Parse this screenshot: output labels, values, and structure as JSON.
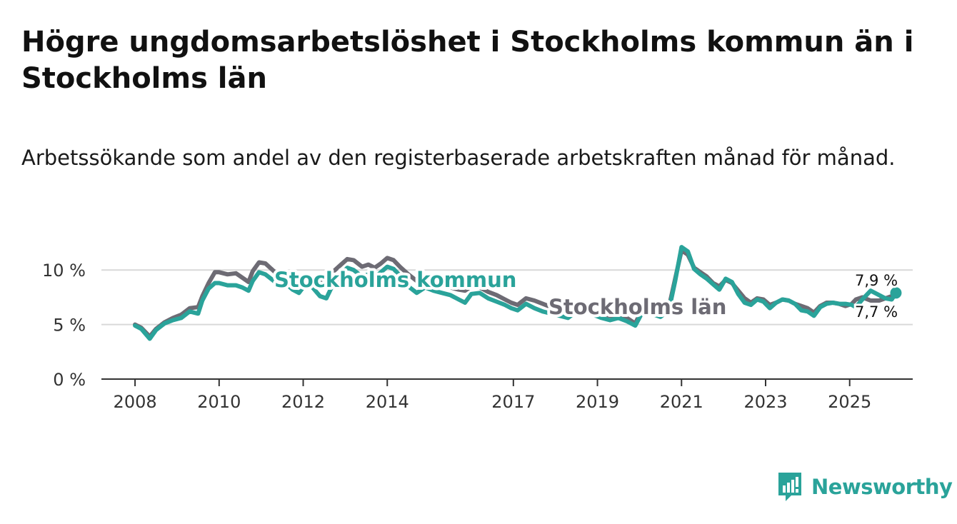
{
  "title": "Högre ungdomsarbetslöshet i Stockholms kommun än i Stockholms län",
  "subtitle": "Arbetssökande som andel av den registerbaserade arbetskraften månad för månad.",
  "brand": {
    "name": "Newsworthy",
    "icon": "newsworthy-logo-icon",
    "color": "#2aa39a"
  },
  "chart_data": {
    "type": "line",
    "title": "Högre ungdomsarbetslöshet i Stockholms kommun än i Stockholms län",
    "xlabel": "",
    "ylabel": "",
    "x_unit": "year (decimal)",
    "xlim": [
      2007.2,
      2026.5
    ],
    "ylim": [
      0,
      12.5
    ],
    "y_ticks": [
      0,
      5,
      10
    ],
    "y_tick_labels": [
      "0 %",
      "5 %",
      "10 %"
    ],
    "x_ticks": [
      2008,
      2010,
      2012,
      2014,
      2017,
      2019,
      2021,
      2023,
      2025
    ],
    "x_tick_labels": [
      "2008",
      "2010",
      "2012",
      "2014",
      "2017",
      "2019",
      "2021",
      "2023",
      "2025"
    ],
    "grid": true,
    "end_labels": {
      "kommun": "7,9 %",
      "lan": "7,7 %"
    },
    "series": [
      {
        "name": "Stockholms län",
        "color": "#6d6b74",
        "points": [
          [
            2008.0,
            5.0
          ],
          [
            2008.15,
            4.7
          ],
          [
            2008.35,
            3.9
          ],
          [
            2008.5,
            4.6
          ],
          [
            2008.7,
            5.2
          ],
          [
            2008.9,
            5.6
          ],
          [
            2009.1,
            5.9
          ],
          [
            2009.3,
            6.5
          ],
          [
            2009.5,
            6.6
          ],
          [
            2009.6,
            7.6
          ],
          [
            2009.75,
            8.8
          ],
          [
            2009.9,
            9.8
          ],
          [
            2010.0,
            9.8
          ],
          [
            2010.2,
            9.6
          ],
          [
            2010.4,
            9.7
          ],
          [
            2010.55,
            9.3
          ],
          [
            2010.7,
            8.9
          ],
          [
            2010.8,
            9.9
          ],
          [
            2010.95,
            10.7
          ],
          [
            2011.1,
            10.6
          ],
          [
            2011.3,
            9.9
          ],
          [
            2011.45,
            9.5
          ],
          [
            2011.6,
            9.8
          ],
          [
            2011.75,
            9.4
          ],
          [
            2011.9,
            9.2
          ],
          [
            2012.0,
            9.0
          ],
          [
            2012.2,
            8.9
          ],
          [
            2012.4,
            8.8
          ],
          [
            2012.55,
            9.1
          ],
          [
            2012.7,
            9.8
          ],
          [
            2012.9,
            10.5
          ],
          [
            2013.05,
            11.0
          ],
          [
            2013.2,
            10.9
          ],
          [
            2013.4,
            10.3
          ],
          [
            2013.55,
            10.5
          ],
          [
            2013.7,
            10.2
          ],
          [
            2013.85,
            10.6
          ],
          [
            2014.0,
            11.1
          ],
          [
            2014.15,
            10.9
          ],
          [
            2014.3,
            10.3
          ],
          [
            2014.5,
            9.6
          ],
          [
            2014.7,
            9.0
          ],
          [
            2014.9,
            8.9
          ],
          [
            2015.1,
            8.8
          ],
          [
            2015.3,
            8.6
          ],
          [
            2015.5,
            8.4
          ],
          [
            2015.7,
            8.2
          ],
          [
            2015.85,
            8.1
          ],
          [
            2016.0,
            8.5
          ],
          [
            2016.2,
            8.4
          ],
          [
            2016.4,
            8.0
          ],
          [
            2016.6,
            7.7
          ],
          [
            2016.8,
            7.3
          ],
          [
            2016.95,
            7.0
          ],
          [
            2017.1,
            6.8
          ],
          [
            2017.3,
            7.4
          ],
          [
            2017.5,
            7.2
          ],
          [
            2017.7,
            6.9
          ],
          [
            2017.9,
            6.6
          ],
          [
            2018.1,
            6.5
          ],
          [
            2018.3,
            6.1
          ],
          [
            2018.5,
            6.6
          ],
          [
            2018.7,
            6.8
          ],
          [
            2018.9,
            6.2
          ],
          [
            2019.1,
            6.0
          ],
          [
            2019.3,
            5.8
          ],
          [
            2019.5,
            5.9
          ],
          [
            2019.7,
            5.6
          ],
          [
            2019.9,
            5.1
          ],
          [
            2020.05,
            6.3
          ],
          [
            2020.2,
            6.6
          ],
          [
            2020.35,
            6.2
          ],
          [
            2020.5,
            6.0
          ],
          [
            2020.7,
            6.6
          ],
          [
            2020.85,
            9.2
          ],
          [
            2021.0,
            11.8
          ],
          [
            2021.15,
            11.4
          ],
          [
            2021.3,
            10.2
          ],
          [
            2021.45,
            9.8
          ],
          [
            2021.6,
            9.4
          ],
          [
            2021.75,
            8.8
          ],
          [
            2021.9,
            8.5
          ],
          [
            2022.05,
            9.1
          ],
          [
            2022.2,
            8.8
          ],
          [
            2022.35,
            8.1
          ],
          [
            2022.5,
            7.4
          ],
          [
            2022.65,
            7.0
          ],
          [
            2022.8,
            7.4
          ],
          [
            2022.95,
            7.3
          ],
          [
            2023.1,
            6.8
          ],
          [
            2023.25,
            7.0
          ],
          [
            2023.4,
            7.3
          ],
          [
            2023.55,
            7.2
          ],
          [
            2023.7,
            6.9
          ],
          [
            2023.85,
            6.7
          ],
          [
            2024.0,
            6.5
          ],
          [
            2024.15,
            6.1
          ],
          [
            2024.3,
            6.7
          ],
          [
            2024.45,
            7.0
          ],
          [
            2024.6,
            7.0
          ],
          [
            2024.75,
            6.9
          ],
          [
            2024.9,
            6.7
          ],
          [
            2025.05,
            6.9
          ],
          [
            2025.15,
            7.3
          ],
          [
            2025.3,
            7.5
          ],
          [
            2025.5,
            7.2
          ],
          [
            2025.7,
            7.2
          ],
          [
            2025.85,
            7.4
          ],
          [
            2026.0,
            7.6
          ],
          [
            2026.1,
            7.7
          ]
        ]
      },
      {
        "name": "Stockholms kommun",
        "color": "#2aa39a",
        "points": [
          [
            2008.0,
            4.9
          ],
          [
            2008.15,
            4.6
          ],
          [
            2008.35,
            3.7
          ],
          [
            2008.5,
            4.5
          ],
          [
            2008.7,
            5.1
          ],
          [
            2008.9,
            5.4
          ],
          [
            2009.1,
            5.6
          ],
          [
            2009.3,
            6.2
          ],
          [
            2009.5,
            6.0
          ],
          [
            2009.6,
            7.2
          ],
          [
            2009.75,
            8.3
          ],
          [
            2009.9,
            8.8
          ],
          [
            2010.0,
            8.8
          ],
          [
            2010.2,
            8.6
          ],
          [
            2010.4,
            8.6
          ],
          [
            2010.55,
            8.4
          ],
          [
            2010.7,
            8.1
          ],
          [
            2010.8,
            9.0
          ],
          [
            2010.95,
            9.8
          ],
          [
            2011.1,
            9.6
          ],
          [
            2011.3,
            9.0
          ],
          [
            2011.45,
            8.4
          ],
          [
            2011.6,
            8.7
          ],
          [
            2011.75,
            8.2
          ],
          [
            2011.9,
            7.9
          ],
          [
            2012.0,
            8.4
          ],
          [
            2012.2,
            8.5
          ],
          [
            2012.4,
            7.6
          ],
          [
            2012.55,
            7.4
          ],
          [
            2012.7,
            8.6
          ],
          [
            2012.9,
            9.6
          ],
          [
            2013.05,
            10.2
          ],
          [
            2013.2,
            10.0
          ],
          [
            2013.4,
            9.4
          ],
          [
            2013.55,
            9.6
          ],
          [
            2013.7,
            9.3
          ],
          [
            2013.85,
            9.8
          ],
          [
            2014.0,
            10.3
          ],
          [
            2014.15,
            10.1
          ],
          [
            2014.3,
            9.5
          ],
          [
            2014.5,
            8.5
          ],
          [
            2014.7,
            7.9
          ],
          [
            2014.9,
            8.4
          ],
          [
            2015.1,
            8.1
          ],
          [
            2015.3,
            7.9
          ],
          [
            2015.5,
            7.7
          ],
          [
            2015.7,
            7.3
          ],
          [
            2015.85,
            7.0
          ],
          [
            2016.0,
            7.8
          ],
          [
            2016.2,
            7.9
          ],
          [
            2016.4,
            7.4
          ],
          [
            2016.6,
            7.1
          ],
          [
            2016.8,
            6.8
          ],
          [
            2016.95,
            6.5
          ],
          [
            2017.1,
            6.3
          ],
          [
            2017.3,
            6.9
          ],
          [
            2017.5,
            6.5
          ],
          [
            2017.7,
            6.2
          ],
          [
            2017.9,
            6.0
          ],
          [
            2018.1,
            5.8
          ],
          [
            2018.3,
            5.6
          ],
          [
            2018.5,
            6.2
          ],
          [
            2018.7,
            6.5
          ],
          [
            2018.9,
            5.9
          ],
          [
            2019.1,
            5.6
          ],
          [
            2019.3,
            5.4
          ],
          [
            2019.5,
            5.6
          ],
          [
            2019.7,
            5.3
          ],
          [
            2019.9,
            4.9
          ],
          [
            2020.05,
            6.0
          ],
          [
            2020.2,
            6.3
          ],
          [
            2020.35,
            5.9
          ],
          [
            2020.5,
            5.7
          ],
          [
            2020.7,
            6.3
          ],
          [
            2020.85,
            9.0
          ],
          [
            2021.0,
            12.1
          ],
          [
            2021.15,
            11.7
          ],
          [
            2021.3,
            10.1
          ],
          [
            2021.45,
            9.6
          ],
          [
            2021.6,
            9.2
          ],
          [
            2021.75,
            8.7
          ],
          [
            2021.9,
            8.2
          ],
          [
            2022.05,
            9.2
          ],
          [
            2022.2,
            8.9
          ],
          [
            2022.35,
            7.8
          ],
          [
            2022.5,
            7.0
          ],
          [
            2022.65,
            6.8
          ],
          [
            2022.8,
            7.3
          ],
          [
            2022.95,
            7.1
          ],
          [
            2023.1,
            6.5
          ],
          [
            2023.25,
            7.0
          ],
          [
            2023.4,
            7.3
          ],
          [
            2023.55,
            7.2
          ],
          [
            2023.7,
            6.9
          ],
          [
            2023.85,
            6.3
          ],
          [
            2024.0,
            6.2
          ],
          [
            2024.15,
            5.8
          ],
          [
            2024.3,
            6.6
          ],
          [
            2024.45,
            6.9
          ],
          [
            2024.6,
            7.0
          ],
          [
            2024.75,
            6.9
          ],
          [
            2024.9,
            6.9
          ],
          [
            2025.05,
            6.8
          ],
          [
            2025.15,
            6.6
          ],
          [
            2025.3,
            7.3
          ],
          [
            2025.5,
            8.1
          ],
          [
            2025.7,
            7.7
          ],
          [
            2025.85,
            7.4
          ],
          [
            2026.0,
            7.3
          ],
          [
            2026.1,
            7.9
          ]
        ]
      }
    ]
  }
}
